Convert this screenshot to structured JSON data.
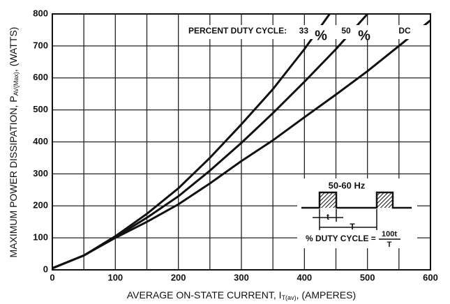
{
  "chart_data": {
    "type": "line",
    "xlabel": {
      "main": "AVERAGE ON-STATE CURRENT, I",
      "sub": "T(av)",
      "tail": ", (AMPERES)"
    },
    "ylabel": {
      "main": "MAXIMUM POWER DISSIPATION, P",
      "sub": "AV(Max)",
      "tail": ", (WATTS)"
    },
    "legend_title": "PERCENT DUTY CYCLE:",
    "percent_sign": "%",
    "xlim": [
      0,
      600
    ],
    "ylim": [
      0,
      800
    ],
    "xticks": [
      0,
      100,
      200,
      300,
      400,
      500,
      600
    ],
    "xminorticks": [
      50,
      150,
      250,
      350,
      450,
      550
    ],
    "yticks": [
      0,
      100,
      200,
      300,
      400,
      500,
      600,
      700,
      800
    ],
    "grid": true,
    "color": "#111111",
    "series": [
      {
        "name": "33",
        "x": [
          0,
          50,
          100,
          150,
          200,
          250,
          300,
          350,
          400,
          440
        ],
        "values": [
          5,
          45,
          105,
          175,
          255,
          350,
          455,
          565,
          690,
          800
        ]
      },
      {
        "name": "50",
        "x": [
          0,
          50,
          100,
          150,
          200,
          250,
          300,
          350,
          400,
          450,
          500
        ],
        "values": [
          5,
          45,
          102,
          163,
          230,
          310,
          397,
          490,
          588,
          690,
          800
        ]
      },
      {
        "name": "DC",
        "x": [
          0,
          50,
          100,
          150,
          200,
          250,
          300,
          350,
          400,
          450,
          500,
          550,
          600
        ],
        "values": [
          5,
          45,
          100,
          150,
          205,
          270,
          340,
          405,
          477,
          548,
          621,
          700,
          780
        ]
      }
    ],
    "inset": {
      "frequency": "50-60 Hz",
      "t": "t",
      "T": "T",
      "formula": "% DUTY CYCLE =",
      "numerator": "100t",
      "denominator": "T"
    }
  }
}
